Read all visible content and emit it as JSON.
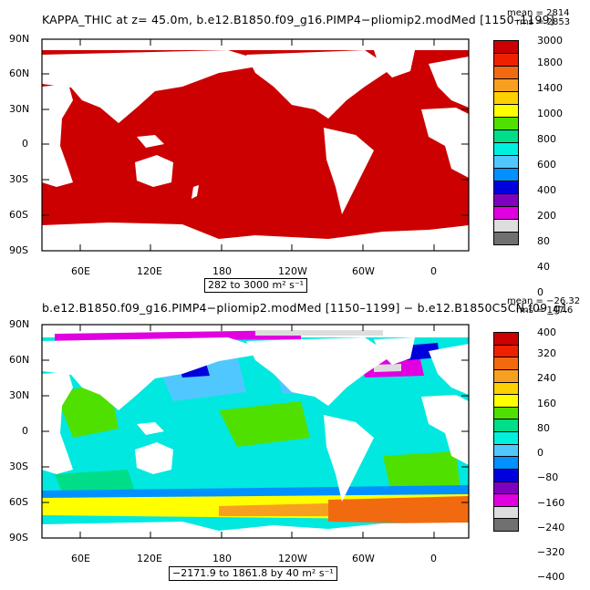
{
  "panel1": {
    "title": "KAPPA_THIC at z=  45.0m, b.e12.B1850.f09_g16.PIMP4−pliomip2.modMed [1150–1199]",
    "mean": "mean = 2814",
    "rms": "rms = 2853",
    "range": "282 to 3000 m² s⁻¹",
    "colorbar": {
      "labels": [
        "3000",
        "1800",
        "1400",
        "1000",
        "800",
        "600",
        "400",
        "200",
        "80",
        "40",
        "0"
      ],
      "colors": [
        "#cc0000",
        "#ee2000",
        "#f26a10",
        "#f7a020",
        "#ffd000",
        "#ffff00",
        "#50e000",
        "#00dd88",
        "#00f0e0",
        "#50c8ff",
        "#0090ff",
        "#0000dd",
        "#8000c0",
        "#e000e0",
        "#dddddd",
        "#707070"
      ]
    }
  },
  "panel2": {
    "title": "b.e12.B1850.f09_g16.PIMP4−pliomip2.modMed [1150–1199] − b.e12.B1850C5CN.f09_g1",
    "mean": "mean = −26.32",
    "rms": "rms = 147.6",
    "range": "−2171.9 to 1861.8 by 40 m² s⁻¹",
    "colorbar": {
      "labels": [
        "400",
        "320",
        "240",
        "160",
        "80",
        "0",
        "−80",
        "−160",
        "−240",
        "−320",
        "−400"
      ],
      "colors": [
        "#cc0000",
        "#ee2000",
        "#f26a10",
        "#f7a020",
        "#ffd000",
        "#ffff00",
        "#50e000",
        "#00dd88",
        "#00f0e0",
        "#50c8ff",
        "#0090ff",
        "#0000dd",
        "#8000c0",
        "#e000e0",
        "#dddddd",
        "#707070"
      ]
    }
  },
  "axes": {
    "lat_labels": [
      "90N",
      "60N",
      "30N",
      "0",
      "30S",
      "60S",
      "90S"
    ],
    "lon_labels": [
      "60E",
      "120E",
      "180",
      "120W",
      "60W",
      "0"
    ]
  },
  "colors": {
    "field_red": "#cc0000",
    "land": "#ffffff"
  }
}
